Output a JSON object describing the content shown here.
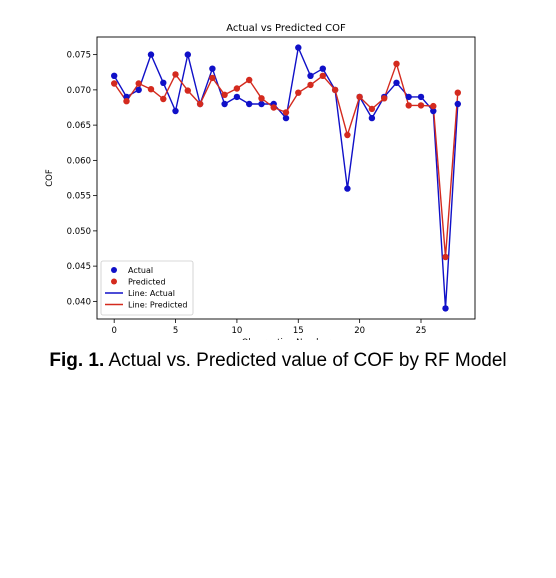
{
  "chart_data": {
    "type": "line",
    "title": "Actual vs Predicted COF",
    "xlabel": "Observation Number",
    "ylabel": "COF",
    "xlim": [
      -1.4,
      29.4
    ],
    "ylim": [
      0.0375,
      0.0775
    ],
    "x_ticks": [
      0,
      5,
      10,
      15,
      20,
      25
    ],
    "y_ticks": [
      0.04,
      0.045,
      0.05,
      0.055,
      0.06,
      0.065,
      0.07,
      0.075
    ],
    "x_tick_labels": [
      "0",
      "5",
      "10",
      "15",
      "20",
      "25"
    ],
    "y_tick_labels": [
      "0.040",
      "0.045",
      "0.050",
      "0.055",
      "0.060",
      "0.065",
      "0.070",
      "0.075"
    ],
    "grid": false,
    "legend_position": "lower-left",
    "x": [
      0,
      1,
      2,
      3,
      4,
      5,
      6,
      7,
      8,
      9,
      10,
      11,
      12,
      13,
      14,
      15,
      16,
      17,
      18,
      19,
      20,
      21,
      22,
      23,
      24,
      25,
      26,
      27,
      28
    ],
    "series": [
      {
        "name": "Actual",
        "line_name": "Line: Actual",
        "color": "#1010c8",
        "values": [
          0.072,
          0.069,
          0.07,
          0.075,
          0.071,
          0.067,
          0.075,
          0.068,
          0.073,
          0.068,
          0.069,
          0.068,
          0.068,
          0.068,
          0.066,
          0.076,
          0.072,
          0.073,
          0.07,
          0.056,
          0.069,
          0.066,
          0.069,
          0.071,
          0.069,
          0.069,
          0.067,
          0.039,
          0.068
        ]
      },
      {
        "name": "Predicted",
        "line_name": "Line: Predicted",
        "color": "#d42a1e",
        "values": [
          0.0709,
          0.0684,
          0.0709,
          0.0701,
          0.0687,
          0.0722,
          0.0699,
          0.068,
          0.0717,
          0.0693,
          0.0702,
          0.0714,
          0.0688,
          0.0675,
          0.0668,
          0.0696,
          0.0707,
          0.072,
          0.07,
          0.0636,
          0.069,
          0.0673,
          0.0688,
          0.0737,
          0.0678,
          0.0678,
          0.0677,
          0.0463,
          0.0696
        ]
      }
    ]
  },
  "caption": {
    "label": "Fig. 1.",
    "text": " Actual vs. Predicted value of COF by RF Model"
  }
}
